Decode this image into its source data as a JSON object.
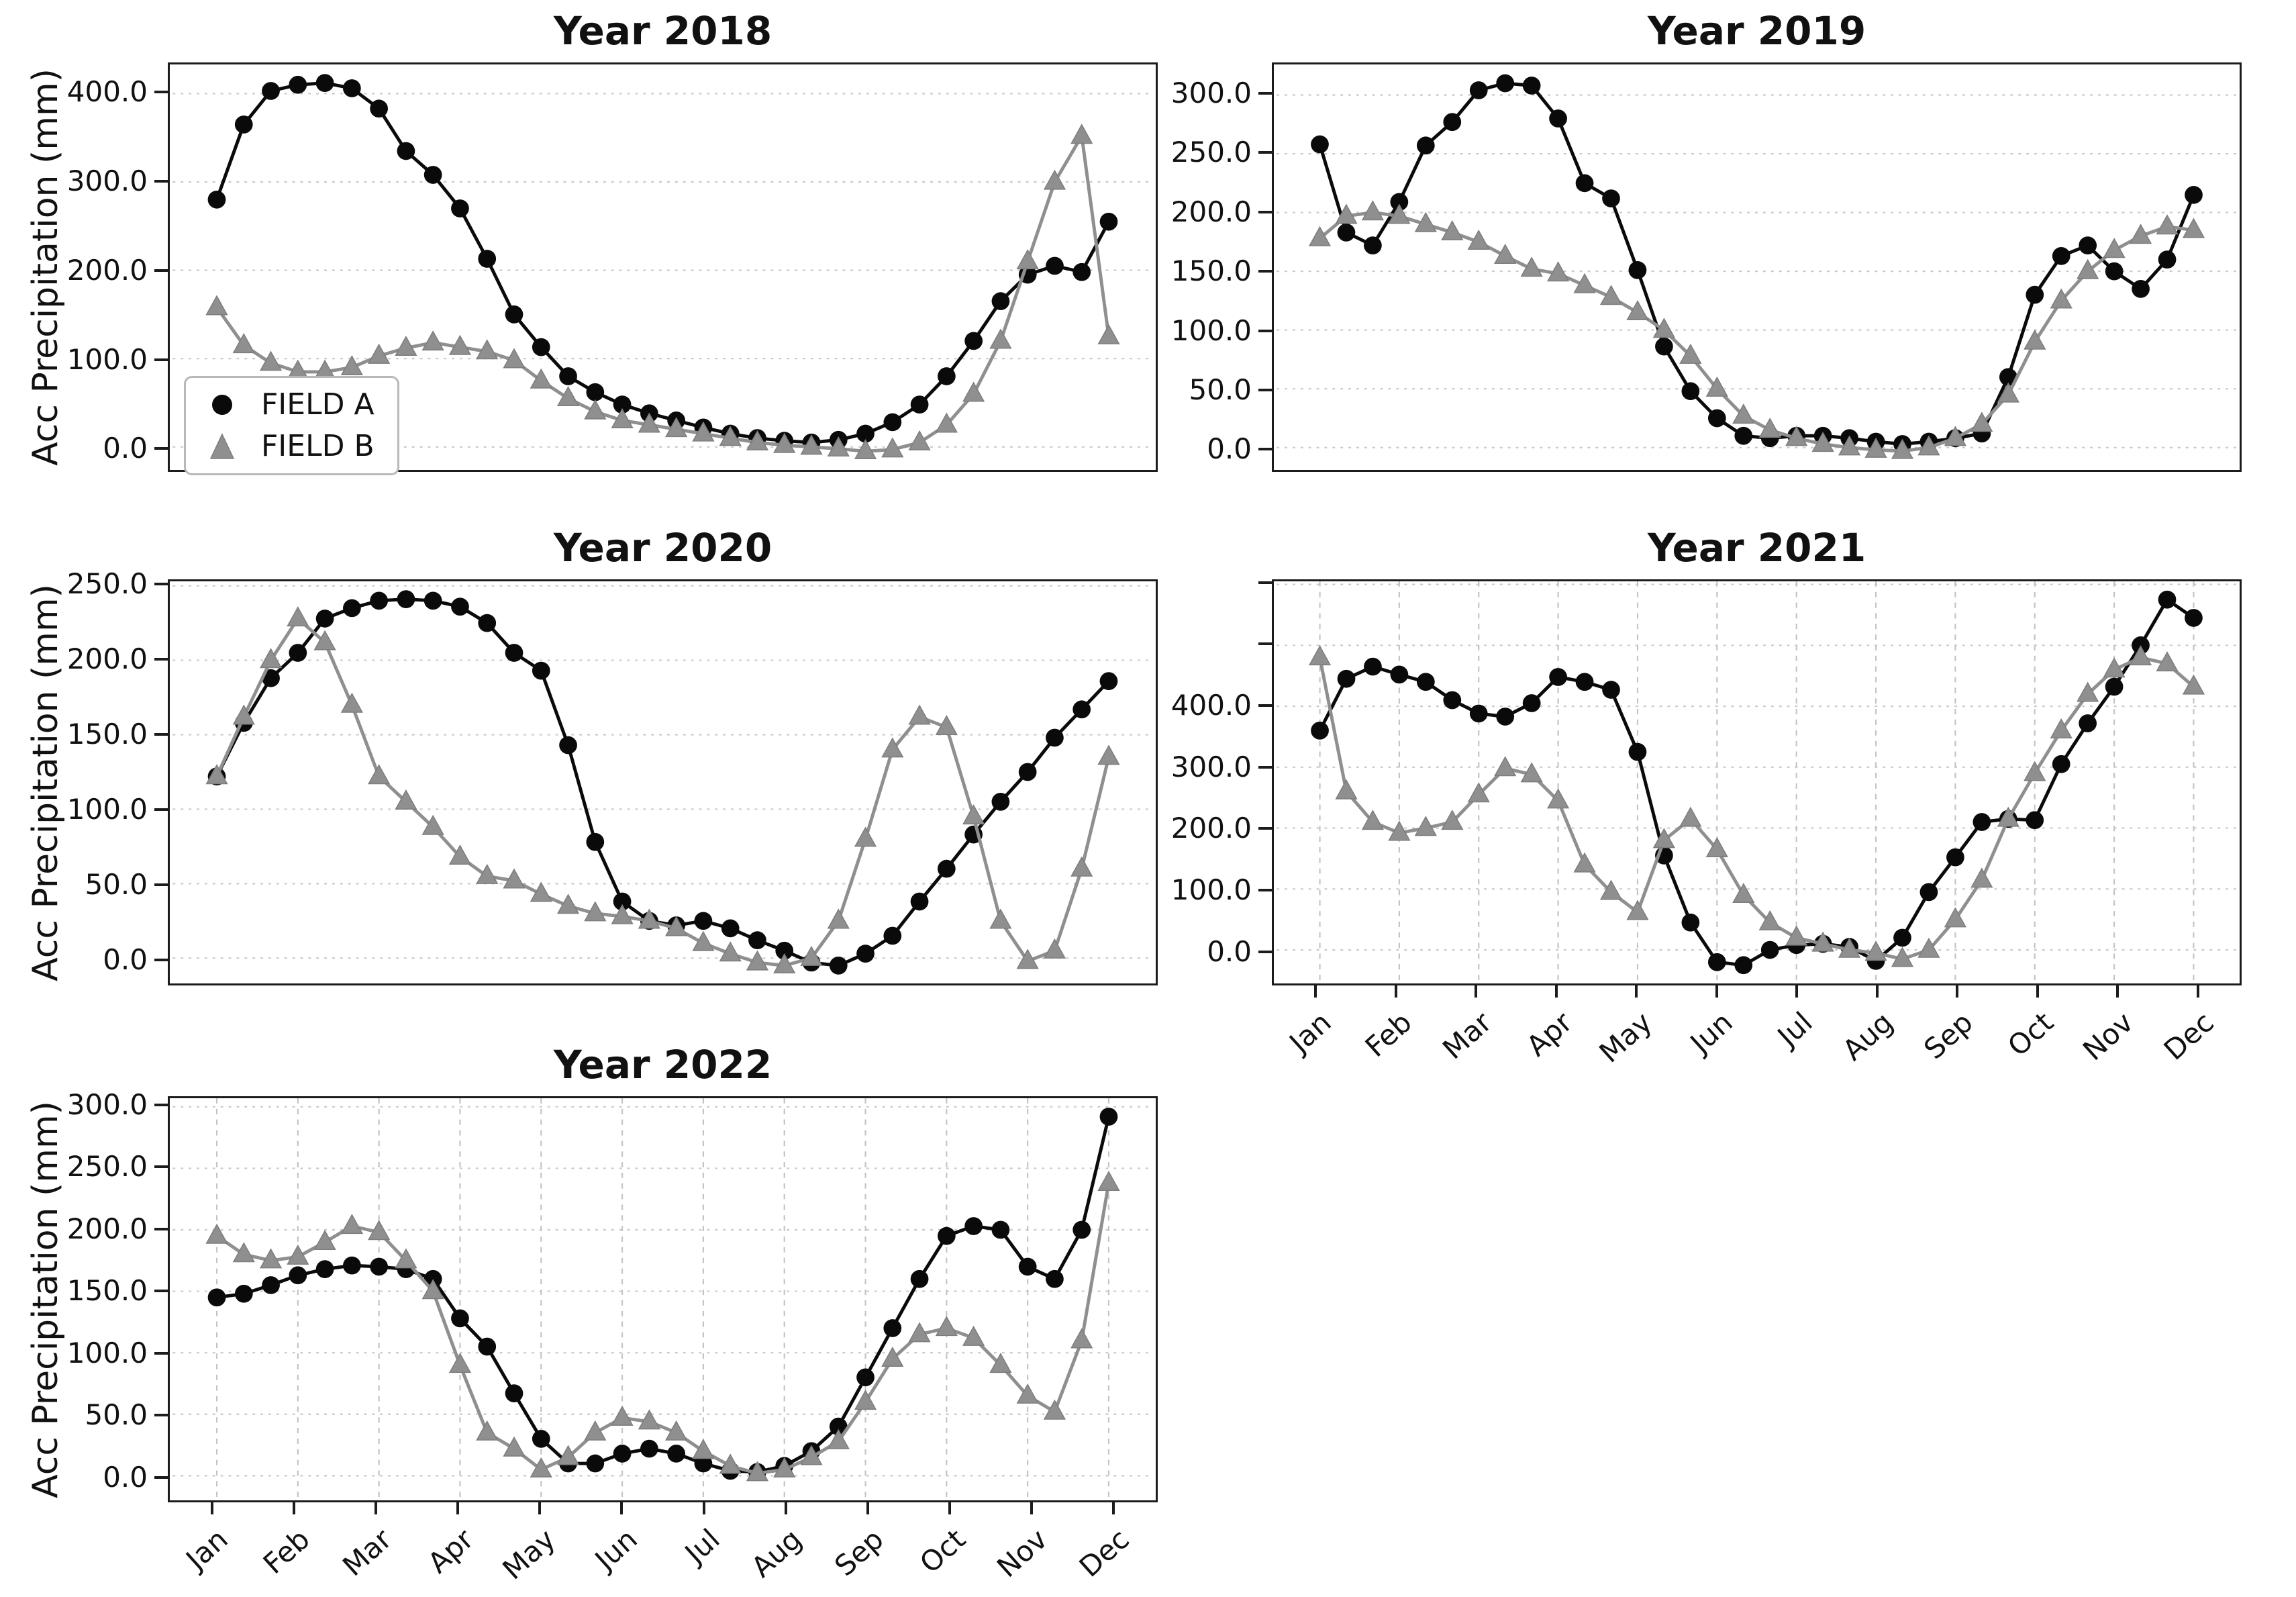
{
  "months": [
    "Jan",
    "Feb",
    "Mar",
    "Apr",
    "May",
    "Jun",
    "Jul",
    "Aug",
    "Sep",
    "Oct",
    "Nov",
    "Dec"
  ],
  "ylabel": "Acc Precipitation (mm)",
  "legend": {
    "field_a": "FIELD A",
    "field_b": "FIELD B"
  },
  "colors": {
    "field_a": "#0a0a0a",
    "field_b": "#8f8f8f",
    "grid": "#c9c9c9",
    "spine": "#1c1c1c"
  },
  "chart_data": [
    {
      "type": "line",
      "title": "Year 2018",
      "xlabel": "",
      "ylabel": "Acc Precipitation (mm)",
      "x_sampling": "3 points per month, Jan through Dec",
      "ylim": [
        -26,
        433
      ],
      "yticks": [
        0,
        100,
        200,
        300,
        400
      ],
      "ytick_labels": [
        "0.0",
        "100.0",
        "200.0",
        "300.0",
        "400.0"
      ],
      "unlabeled_grid": [],
      "show_x_tick_labels": false,
      "vertical_grid": false,
      "legend_visible": true,
      "ylabel_visible": true,
      "series": [
        {
          "name": "FIELD A",
          "marker": "circle",
          "color": "#0a0a0a",
          "values": [
            280,
            365,
            403,
            410,
            412,
            406,
            383,
            335,
            308,
            270,
            213,
            150,
            113,
            80,
            62,
            48,
            38,
            30,
            22,
            15,
            10,
            7,
            5,
            8,
            15,
            28,
            48,
            80,
            120,
            165,
            195,
            205,
            198,
            255
          ]
        },
        {
          "name": "FIELD B",
          "marker": "triangle",
          "color": "#8f8f8f",
          "values": [
            158,
            115,
            95,
            85,
            85,
            90,
            103,
            112,
            118,
            113,
            108,
            98,
            75,
            55,
            40,
            30,
            25,
            20,
            15,
            10,
            5,
            2,
            0,
            -2,
            -5,
            -3,
            5,
            25,
            60,
            120,
            210,
            300,
            352,
            125
          ]
        }
      ]
    },
    {
      "type": "line",
      "title": "Year 2019",
      "xlabel": "",
      "ylabel": "",
      "x_sampling": "3 points per month, Jan through Dec",
      "ylim": [
        -19,
        326
      ],
      "yticks": [
        0,
        50,
        100,
        150,
        200,
        250,
        300
      ],
      "ytick_labels": [
        "0.0",
        "50.0",
        "100.0",
        "150.0",
        "200.0",
        "250.0",
        "300.0"
      ],
      "unlabeled_grid": [],
      "show_x_tick_labels": false,
      "vertical_grid": false,
      "legend_visible": false,
      "ylabel_visible": false,
      "series": [
        {
          "name": "FIELD A",
          "marker": "circle",
          "color": "#0a0a0a",
          "values": [
            258,
            183,
            172,
            209,
            257,
            277,
            304,
            310,
            308,
            280,
            225,
            212,
            151,
            86,
            48,
            25,
            10,
            8,
            10,
            10,
            8,
            5,
            3,
            5,
            8,
            12,
            60,
            130,
            163,
            172,
            150,
            135,
            160,
            215
          ]
        },
        {
          "name": "FIELD B",
          "marker": "triangle",
          "color": "#8f8f8f",
          "values": [
            178,
            197,
            200,
            197,
            190,
            183,
            175,
            163,
            152,
            148,
            138,
            128,
            115,
            100,
            78,
            50,
            27,
            15,
            8,
            3,
            0,
            -2,
            -3,
            0,
            8,
            20,
            45,
            90,
            125,
            150,
            168,
            180,
            188,
            185
          ]
        }
      ]
    },
    {
      "type": "line",
      "title": "Year 2020",
      "xlabel": "",
      "ylabel": "Acc Precipitation (mm)",
      "x_sampling": "3 points per month, Jan through Dec",
      "ylim": [
        -17,
        253
      ],
      "yticks": [
        0,
        50,
        100,
        150,
        200,
        250
      ],
      "ytick_labels": [
        "0.0",
        "50.0",
        "100.0",
        "150.0",
        "200.0",
        "250.0"
      ],
      "unlabeled_grid": [],
      "show_x_tick_labels": false,
      "vertical_grid": false,
      "legend_visible": false,
      "ylabel_visible": true,
      "series": [
        {
          "name": "FIELD A",
          "marker": "circle",
          "color": "#0a0a0a",
          "values": [
            122,
            158,
            188,
            205,
            228,
            235,
            240,
            241,
            240,
            236,
            225,
            205,
            193,
            143,
            78,
            38,
            25,
            22,
            25,
            20,
            12,
            5,
            -3,
            -5,
            3,
            15,
            38,
            60,
            83,
            105,
            125,
            148,
            167,
            186
          ]
        },
        {
          "name": "FIELD B",
          "marker": "triangle",
          "color": "#8f8f8f",
          "values": [
            122,
            162,
            200,
            228,
            212,
            170,
            122,
            105,
            88,
            68,
            55,
            52,
            43,
            35,
            30,
            28,
            25,
            20,
            10,
            3,
            -3,
            -5,
            0,
            25,
            80,
            140,
            162,
            155,
            95,
            25,
            -2,
            5,
            60,
            135
          ]
        }
      ]
    },
    {
      "type": "line",
      "title": "Year 2021",
      "xlabel": "",
      "ylabel": "",
      "x_sampling": "3 points per month, Jan through Dec",
      "ylim": [
        -55,
        605
      ],
      "yticks": [
        0,
        100,
        200,
        300,
        400
      ],
      "ytick_labels": [
        "0.0",
        "100.0",
        "200.0",
        "300.0",
        "400.0"
      ],
      "unlabeled_grid": [
        500,
        600
      ],
      "show_x_tick_labels": true,
      "vertical_grid": true,
      "legend_visible": false,
      "ylabel_visible": false,
      "series": [
        {
          "name": "FIELD A",
          "marker": "circle",
          "color": "#0a0a0a",
          "values": [
            360,
            445,
            465,
            452,
            440,
            410,
            388,
            383,
            405,
            448,
            440,
            427,
            325,
            155,
            45,
            -20,
            -25,
            0,
            8,
            10,
            5,
            -18,
            20,
            95,
            152,
            210,
            215,
            213,
            305,
            372,
            432,
            500,
            575,
            545
          ]
        },
        {
          "name": "FIELD B",
          "marker": "triangle",
          "color": "#8f8f8f",
          "values": [
            480,
            260,
            210,
            192,
            200,
            210,
            255,
            298,
            288,
            245,
            140,
            95,
            62,
            180,
            215,
            165,
            90,
            45,
            20,
            10,
            0,
            -5,
            -15,
            0,
            50,
            115,
            215,
            290,
            360,
            420,
            460,
            480,
            470,
            432
          ]
        }
      ]
    },
    {
      "type": "line",
      "title": "Year 2022",
      "xlabel": "",
      "ylabel": "Acc Precipitation (mm)",
      "x_sampling": "3 points per month, Jan through Dec",
      "ylim": [
        -20,
        307
      ],
      "yticks": [
        0,
        50,
        100,
        150,
        200,
        250,
        300
      ],
      "ytick_labels": [
        "0.0",
        "50.0",
        "100.0",
        "150.0",
        "200.0",
        "250.0",
        "300.0"
      ],
      "unlabeled_grid": [],
      "show_x_tick_labels": true,
      "vertical_grid": true,
      "legend_visible": false,
      "ylabel_visible": true,
      "series": [
        {
          "name": "FIELD A",
          "marker": "circle",
          "color": "#0a0a0a",
          "values": [
            145,
            148,
            155,
            163,
            168,
            171,
            170,
            168,
            160,
            128,
            105,
            67,
            30,
            10,
            10,
            18,
            22,
            18,
            10,
            4,
            3,
            8,
            20,
            40,
            80,
            120,
            160,
            195,
            203,
            200,
            170,
            160,
            200,
            292
          ]
        },
        {
          "name": "FIELD B",
          "marker": "triangle",
          "color": "#8f8f8f",
          "values": [
            195,
            180,
            175,
            178,
            190,
            203,
            198,
            175,
            150,
            90,
            35,
            22,
            5,
            15,
            35,
            47,
            44,
            35,
            20,
            8,
            2,
            5,
            15,
            28,
            60,
            95,
            115,
            120,
            112,
            90,
            65,
            52,
            110,
            238
          ]
        }
      ]
    }
  ]
}
